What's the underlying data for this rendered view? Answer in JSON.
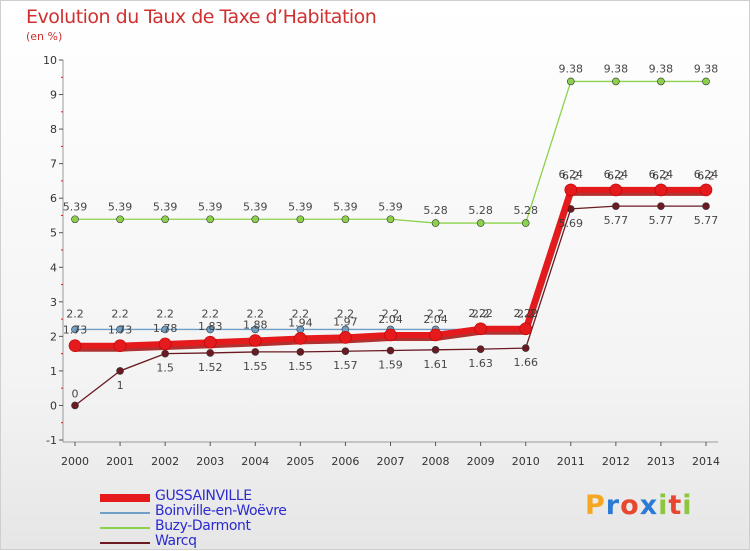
{
  "header": {
    "title": "Evolution du Taux de Taxe d’Habitation",
    "subtitle": "(en %)"
  },
  "logo": {
    "text": "Proxiti",
    "colors": [
      "#f5a623",
      "#2b7bd6",
      "#e8462f",
      "#2b7bd6",
      "#8cc63f",
      "#e8462f",
      "#8cc63f"
    ]
  },
  "chart_data": {
    "type": "line",
    "title": "Evolution du Taux de Taxe d’Habitation",
    "ylabel": "(en %)",
    "xlabel": "",
    "x": [
      "2000",
      "2001",
      "2002",
      "2003",
      "2004",
      "2005",
      "2006",
      "2007",
      "2008",
      "2009",
      "2010",
      "2011",
      "2012",
      "2013",
      "2014"
    ],
    "ylim": [
      -1,
      10
    ],
    "yticks": [
      "-1",
      "0",
      "1",
      "2",
      "3",
      "4",
      "5",
      "6",
      "7",
      "8",
      "9",
      "10"
    ],
    "grid": false,
    "legend_position": "bottom-left",
    "series": [
      {
        "name": "GUSSAINVILLE",
        "color": "#e41a1c",
        "values": [
          1.73,
          1.73,
          1.78,
          1.83,
          1.88,
          1.94,
          1.97,
          2.04,
          2.04,
          2.22,
          2.22,
          6.24,
          6.24,
          6.24,
          6.24
        ],
        "labels": [
          "1.73",
          "1.73",
          "1.78",
          "1.83",
          "1.88",
          "1.94",
          "1.97",
          "2.04",
          "2.04",
          "2.22",
          "2.22",
          "6.24",
          "6.24",
          "6.24",
          "6.24"
        ]
      },
      {
        "name": "Boinville-en-Woëvre",
        "color": "#6f9fc6",
        "values": [
          2.2,
          2.2,
          2.2,
          2.2,
          2.2,
          2.2,
          2.2,
          2.2,
          2.2,
          2.2,
          2.2,
          6.2,
          6.2,
          6.2,
          6.2
        ],
        "labels": [
          "2.2",
          "2.2",
          "2.2",
          "2.2",
          "2.2",
          "2.2",
          "2.2",
          "2.2",
          "2.2",
          "2.2",
          "2.2",
          "6.2",
          "6.2",
          "6.2",
          "6.2"
        ]
      },
      {
        "name": "Buzy-Darmont",
        "color": "#8cd14b",
        "values": [
          5.39,
          5.39,
          5.39,
          5.39,
          5.39,
          5.39,
          5.39,
          5.39,
          5.28,
          5.28,
          5.28,
          9.38,
          9.38,
          9.38,
          9.38
        ],
        "labels": [
          "5.39",
          "5.39",
          "5.39",
          "5.39",
          "5.39",
          "5.39",
          "5.39",
          "5.39",
          "5.28",
          "5.28",
          "5.28",
          "9.38",
          "9.38",
          "9.38",
          "9.38"
        ]
      },
      {
        "name": "Warcq",
        "color": "#6b1a22",
        "values": [
          0,
          1,
          1.5,
          1.52,
          1.55,
          1.55,
          1.57,
          1.59,
          1.61,
          1.63,
          1.66,
          5.69,
          5.77,
          5.77,
          5.77
        ],
        "labels": [
          "0",
          "1",
          "1.5",
          "1.52",
          "1.55",
          "1.55",
          "1.57",
          "1.59",
          "1.61",
          "1.63",
          "1.66",
          "5.69",
          "5.77",
          "5.77",
          "5.77"
        ]
      }
    ]
  }
}
